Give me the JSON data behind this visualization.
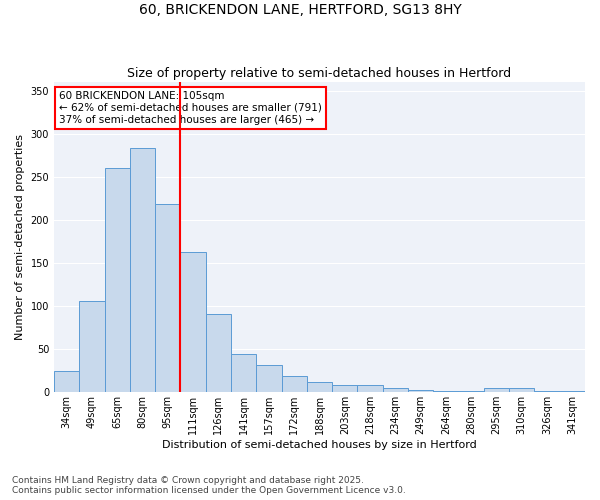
{
  "title_line1": "60, BRICKENDON LANE, HERTFORD, SG13 8HY",
  "title_line2": "Size of property relative to semi-detached houses in Hertford",
  "xlabel": "Distribution of semi-detached houses by size in Hertford",
  "ylabel": "Number of semi-detached properties",
  "categories": [
    "34sqm",
    "49sqm",
    "65sqm",
    "80sqm",
    "95sqm",
    "111sqm",
    "126sqm",
    "141sqm",
    "157sqm",
    "172sqm",
    "188sqm",
    "203sqm",
    "218sqm",
    "234sqm",
    "249sqm",
    "264sqm",
    "280sqm",
    "295sqm",
    "310sqm",
    "326sqm",
    "341sqm"
  ],
  "values": [
    25,
    106,
    260,
    283,
    218,
    163,
    91,
    44,
    32,
    19,
    12,
    9,
    9,
    5,
    3,
    2,
    1,
    5,
    5,
    1,
    1
  ],
  "bar_color": "#c8d9ec",
  "bar_edge_color": "#5b9bd5",
  "vline_color": "red",
  "annotation_text": "60 BRICKENDON LANE: 105sqm\n← 62% of semi-detached houses are smaller (791)\n37% of semi-detached houses are larger (465) →",
  "annotation_box_color": "white",
  "annotation_box_edge_color": "red",
  "ylim": [
    0,
    360
  ],
  "yticks": [
    0,
    50,
    100,
    150,
    200,
    250,
    300,
    350
  ],
  "background_color": "#eef2f9",
  "footer_text": "Contains HM Land Registry data © Crown copyright and database right 2025.\nContains public sector information licensed under the Open Government Licence v3.0.",
  "title_fontsize": 10,
  "subtitle_fontsize": 9,
  "axis_label_fontsize": 8,
  "tick_fontsize": 7,
  "annotation_fontsize": 7.5,
  "footer_fontsize": 6.5
}
